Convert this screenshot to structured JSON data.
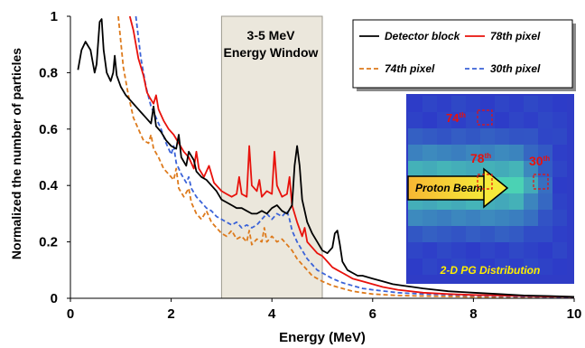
{
  "chart_data": {
    "type": "line",
    "xlabel": "Energy (MeV)",
    "ylabel": "Normalized the number of particles",
    "xlim": [
      0,
      10
    ],
    "ylim": [
      0,
      1
    ],
    "xticks": [
      "0",
      "2",
      "4",
      "6",
      "8",
      "10"
    ],
    "yticks": [
      "0",
      "0.2",
      "0.4",
      "0.6",
      "0.8",
      "1"
    ],
    "grid": false,
    "legend_position": "top-right",
    "energy_window": {
      "range": [
        3,
        5
      ],
      "label_line1": "3-5 MeV",
      "label_line2": "Energy Window",
      "fill": "#ebe7dc"
    },
    "series": [
      {
        "name": "Detector block",
        "color": "#000000",
        "dash": "solid",
        "points": [
          [
            0.15,
            0.81
          ],
          [
            0.22,
            0.88
          ],
          [
            0.3,
            0.91
          ],
          [
            0.4,
            0.88
          ],
          [
            0.48,
            0.8
          ],
          [
            0.52,
            0.83
          ],
          [
            0.58,
            0.98
          ],
          [
            0.62,
            0.99
          ],
          [
            0.66,
            0.88
          ],
          [
            0.72,
            0.8
          ],
          [
            0.8,
            0.77
          ],
          [
            0.85,
            0.8
          ],
          [
            0.88,
            0.86
          ],
          [
            0.92,
            0.79
          ],
          [
            1.0,
            0.75
          ],
          [
            1.1,
            0.72
          ],
          [
            1.2,
            0.7
          ],
          [
            1.3,
            0.68
          ],
          [
            1.4,
            0.66
          ],
          [
            1.5,
            0.64
          ],
          [
            1.6,
            0.62
          ],
          [
            1.65,
            0.68
          ],
          [
            1.7,
            0.61
          ],
          [
            1.8,
            0.59
          ],
          [
            1.9,
            0.56
          ],
          [
            2.0,
            0.54
          ],
          [
            2.1,
            0.53
          ],
          [
            2.15,
            0.58
          ],
          [
            2.2,
            0.5
          ],
          [
            2.3,
            0.47
          ],
          [
            2.35,
            0.52
          ],
          [
            2.45,
            0.49
          ],
          [
            2.5,
            0.45
          ],
          [
            2.6,
            0.43
          ],
          [
            2.7,
            0.42
          ],
          [
            2.8,
            0.4
          ],
          [
            2.9,
            0.38
          ],
          [
            3.0,
            0.35
          ],
          [
            3.1,
            0.34
          ],
          [
            3.2,
            0.33
          ],
          [
            3.3,
            0.32
          ],
          [
            3.4,
            0.32
          ],
          [
            3.5,
            0.31
          ],
          [
            3.6,
            0.3
          ],
          [
            3.7,
            0.3
          ],
          [
            3.8,
            0.31
          ],
          [
            3.9,
            0.3
          ],
          [
            4.0,
            0.32
          ],
          [
            4.1,
            0.33
          ],
          [
            4.2,
            0.31
          ],
          [
            4.3,
            0.3
          ],
          [
            4.4,
            0.33
          ],
          [
            4.45,
            0.47
          ],
          [
            4.5,
            0.54
          ],
          [
            4.55,
            0.47
          ],
          [
            4.6,
            0.35
          ],
          [
            4.7,
            0.27
          ],
          [
            4.8,
            0.23
          ],
          [
            4.9,
            0.2
          ],
          [
            5.0,
            0.17
          ],
          [
            5.1,
            0.16
          ],
          [
            5.2,
            0.18
          ],
          [
            5.25,
            0.23
          ],
          [
            5.3,
            0.24
          ],
          [
            5.35,
            0.19
          ],
          [
            5.4,
            0.13
          ],
          [
            5.5,
            0.1
          ],
          [
            5.6,
            0.09
          ],
          [
            5.7,
            0.08
          ],
          [
            5.8,
            0.08
          ],
          [
            6.0,
            0.07
          ],
          [
            6.2,
            0.06
          ],
          [
            6.4,
            0.05
          ],
          [
            6.6,
            0.045
          ],
          [
            6.8,
            0.04
          ],
          [
            7.0,
            0.035
          ],
          [
            7.5,
            0.025
          ],
          [
            8.0,
            0.02
          ],
          [
            8.5,
            0.015
          ],
          [
            9.0,
            0.01
          ],
          [
            9.5,
            0.008
          ],
          [
            10.0,
            0.005
          ]
        ]
      },
      {
        "name": "78th pixel",
        "color": "#e8120c",
        "dash": "solid",
        "points": [
          [
            1.18,
            1.0
          ],
          [
            1.25,
            0.95
          ],
          [
            1.35,
            0.85
          ],
          [
            1.45,
            0.79
          ],
          [
            1.52,
            0.73
          ],
          [
            1.58,
            0.71
          ],
          [
            1.65,
            0.69
          ],
          [
            1.7,
            0.72
          ],
          [
            1.75,
            0.67
          ],
          [
            1.85,
            0.63
          ],
          [
            1.95,
            0.6
          ],
          [
            2.05,
            0.58
          ],
          [
            2.15,
            0.55
          ],
          [
            2.25,
            0.52
          ],
          [
            2.35,
            0.5
          ],
          [
            2.45,
            0.46
          ],
          [
            2.5,
            0.52
          ],
          [
            2.55,
            0.46
          ],
          [
            2.65,
            0.43
          ],
          [
            2.75,
            0.47
          ],
          [
            2.85,
            0.41
          ],
          [
            3.0,
            0.38
          ],
          [
            3.1,
            0.37
          ],
          [
            3.2,
            0.36
          ],
          [
            3.3,
            0.37
          ],
          [
            3.35,
            0.43
          ],
          [
            3.4,
            0.37
          ],
          [
            3.5,
            0.36
          ],
          [
            3.55,
            0.54
          ],
          [
            3.6,
            0.4
          ],
          [
            3.7,
            0.38
          ],
          [
            3.75,
            0.42
          ],
          [
            3.8,
            0.36
          ],
          [
            3.9,
            0.38
          ],
          [
            4.0,
            0.37
          ],
          [
            4.05,
            0.52
          ],
          [
            4.1,
            0.4
          ],
          [
            4.2,
            0.36
          ],
          [
            4.3,
            0.37
          ],
          [
            4.35,
            0.43
          ],
          [
            4.4,
            0.33
          ],
          [
            4.5,
            0.27
          ],
          [
            4.6,
            0.22
          ],
          [
            4.65,
            0.25
          ],
          [
            4.7,
            0.2
          ],
          [
            4.8,
            0.18
          ],
          [
            4.9,
            0.16
          ],
          [
            5.0,
            0.15
          ],
          [
            5.1,
            0.13
          ],
          [
            5.2,
            0.11
          ],
          [
            5.3,
            0.1
          ],
          [
            5.4,
            0.09
          ],
          [
            5.5,
            0.08
          ],
          [
            5.6,
            0.07
          ],
          [
            5.8,
            0.06
          ],
          [
            6.0,
            0.05
          ],
          [
            6.2,
            0.04
          ],
          [
            6.5,
            0.03
          ],
          [
            7.0,
            0.02
          ],
          [
            7.5,
            0.015
          ],
          [
            8.0,
            0.012
          ],
          [
            8.5,
            0.01
          ],
          [
            9.0,
            0.008
          ],
          [
            9.5,
            0.006
          ],
          [
            10.0,
            0.005
          ]
        ]
      },
      {
        "name": "74th pixel",
        "color": "#dd7a1c",
        "dash": "dashed",
        "points": [
          [
            0.95,
            1.0
          ],
          [
            1.05,
            0.82
          ],
          [
            1.15,
            0.72
          ],
          [
            1.25,
            0.64
          ],
          [
            1.35,
            0.6
          ],
          [
            1.45,
            0.56
          ],
          [
            1.55,
            0.55
          ],
          [
            1.6,
            0.58
          ],
          [
            1.65,
            0.53
          ],
          [
            1.75,
            0.5
          ],
          [
            1.85,
            0.46
          ],
          [
            1.95,
            0.44
          ],
          [
            2.05,
            0.42
          ],
          [
            2.1,
            0.46
          ],
          [
            2.15,
            0.39
          ],
          [
            2.25,
            0.36
          ],
          [
            2.35,
            0.39
          ],
          [
            2.4,
            0.34
          ],
          [
            2.5,
            0.3
          ],
          [
            2.6,
            0.28
          ],
          [
            2.7,
            0.31
          ],
          [
            2.8,
            0.27
          ],
          [
            2.9,
            0.25
          ],
          [
            3.0,
            0.23
          ],
          [
            3.1,
            0.22
          ],
          [
            3.2,
            0.24
          ],
          [
            3.3,
            0.21
          ],
          [
            3.4,
            0.22
          ],
          [
            3.5,
            0.2
          ],
          [
            3.55,
            0.24
          ],
          [
            3.6,
            0.19
          ],
          [
            3.7,
            0.21
          ],
          [
            3.8,
            0.2
          ],
          [
            3.85,
            0.25
          ],
          [
            3.9,
            0.2
          ],
          [
            4.0,
            0.22
          ],
          [
            4.1,
            0.2
          ],
          [
            4.2,
            0.21
          ],
          [
            4.3,
            0.19
          ],
          [
            4.4,
            0.17
          ],
          [
            4.5,
            0.14
          ],
          [
            4.6,
            0.12
          ],
          [
            4.7,
            0.1
          ],
          [
            4.8,
            0.08
          ],
          [
            4.9,
            0.07
          ],
          [
            5.0,
            0.06
          ],
          [
            5.2,
            0.045
          ],
          [
            5.4,
            0.035
          ],
          [
            5.6,
            0.025
          ],
          [
            5.8,
            0.02
          ],
          [
            6.0,
            0.015
          ],
          [
            6.5,
            0.01
          ],
          [
            7.0,
            0.008
          ],
          [
            8.0,
            0.005
          ],
          [
            9.0,
            0.004
          ],
          [
            10.0,
            0.003
          ]
        ]
      },
      {
        "name": "30th pixel",
        "color": "#3b63d8",
        "dash": "dashed",
        "points": [
          [
            1.3,
            1.0
          ],
          [
            1.4,
            0.85
          ],
          [
            1.5,
            0.75
          ],
          [
            1.6,
            0.68
          ],
          [
            1.7,
            0.64
          ],
          [
            1.8,
            0.6
          ],
          [
            1.9,
            0.55
          ],
          [
            2.0,
            0.51
          ],
          [
            2.05,
            0.54
          ],
          [
            2.1,
            0.48
          ],
          [
            2.2,
            0.44
          ],
          [
            2.3,
            0.41
          ],
          [
            2.35,
            0.43
          ],
          [
            2.4,
            0.39
          ],
          [
            2.5,
            0.36
          ],
          [
            2.6,
            0.34
          ],
          [
            2.7,
            0.32
          ],
          [
            2.8,
            0.31
          ],
          [
            2.9,
            0.29
          ],
          [
            3.0,
            0.28
          ],
          [
            3.1,
            0.27
          ],
          [
            3.2,
            0.26
          ],
          [
            3.3,
            0.27
          ],
          [
            3.4,
            0.25
          ],
          [
            3.5,
            0.26
          ],
          [
            3.6,
            0.25
          ],
          [
            3.7,
            0.26
          ],
          [
            3.8,
            0.28
          ],
          [
            3.9,
            0.3
          ],
          [
            4.0,
            0.28
          ],
          [
            4.1,
            0.3
          ],
          [
            4.2,
            0.29
          ],
          [
            4.3,
            0.31
          ],
          [
            4.35,
            0.28
          ],
          [
            4.4,
            0.24
          ],
          [
            4.5,
            0.2
          ],
          [
            4.6,
            0.17
          ],
          [
            4.7,
            0.14
          ],
          [
            4.8,
            0.12
          ],
          [
            4.9,
            0.1
          ],
          [
            5.0,
            0.09
          ],
          [
            5.2,
            0.07
          ],
          [
            5.4,
            0.055
          ],
          [
            5.6,
            0.045
          ],
          [
            5.8,
            0.035
          ],
          [
            6.0,
            0.03
          ],
          [
            6.5,
            0.02
          ],
          [
            7.0,
            0.015
          ],
          [
            8.0,
            0.01
          ],
          [
            9.0,
            0.006
          ],
          [
            10.0,
            0.004
          ]
        ]
      }
    ],
    "inset": {
      "title": "2-D PG Distribution",
      "beam_label": "Proton Beam",
      "pixel_labels": [
        {
          "text": "74",
          "sup": "th"
        },
        {
          "text": "78",
          "sup": "th"
        },
        {
          "text": "30",
          "sup": "th"
        }
      ],
      "label_color": "#e8120c",
      "title_color": "#ffee00"
    }
  }
}
